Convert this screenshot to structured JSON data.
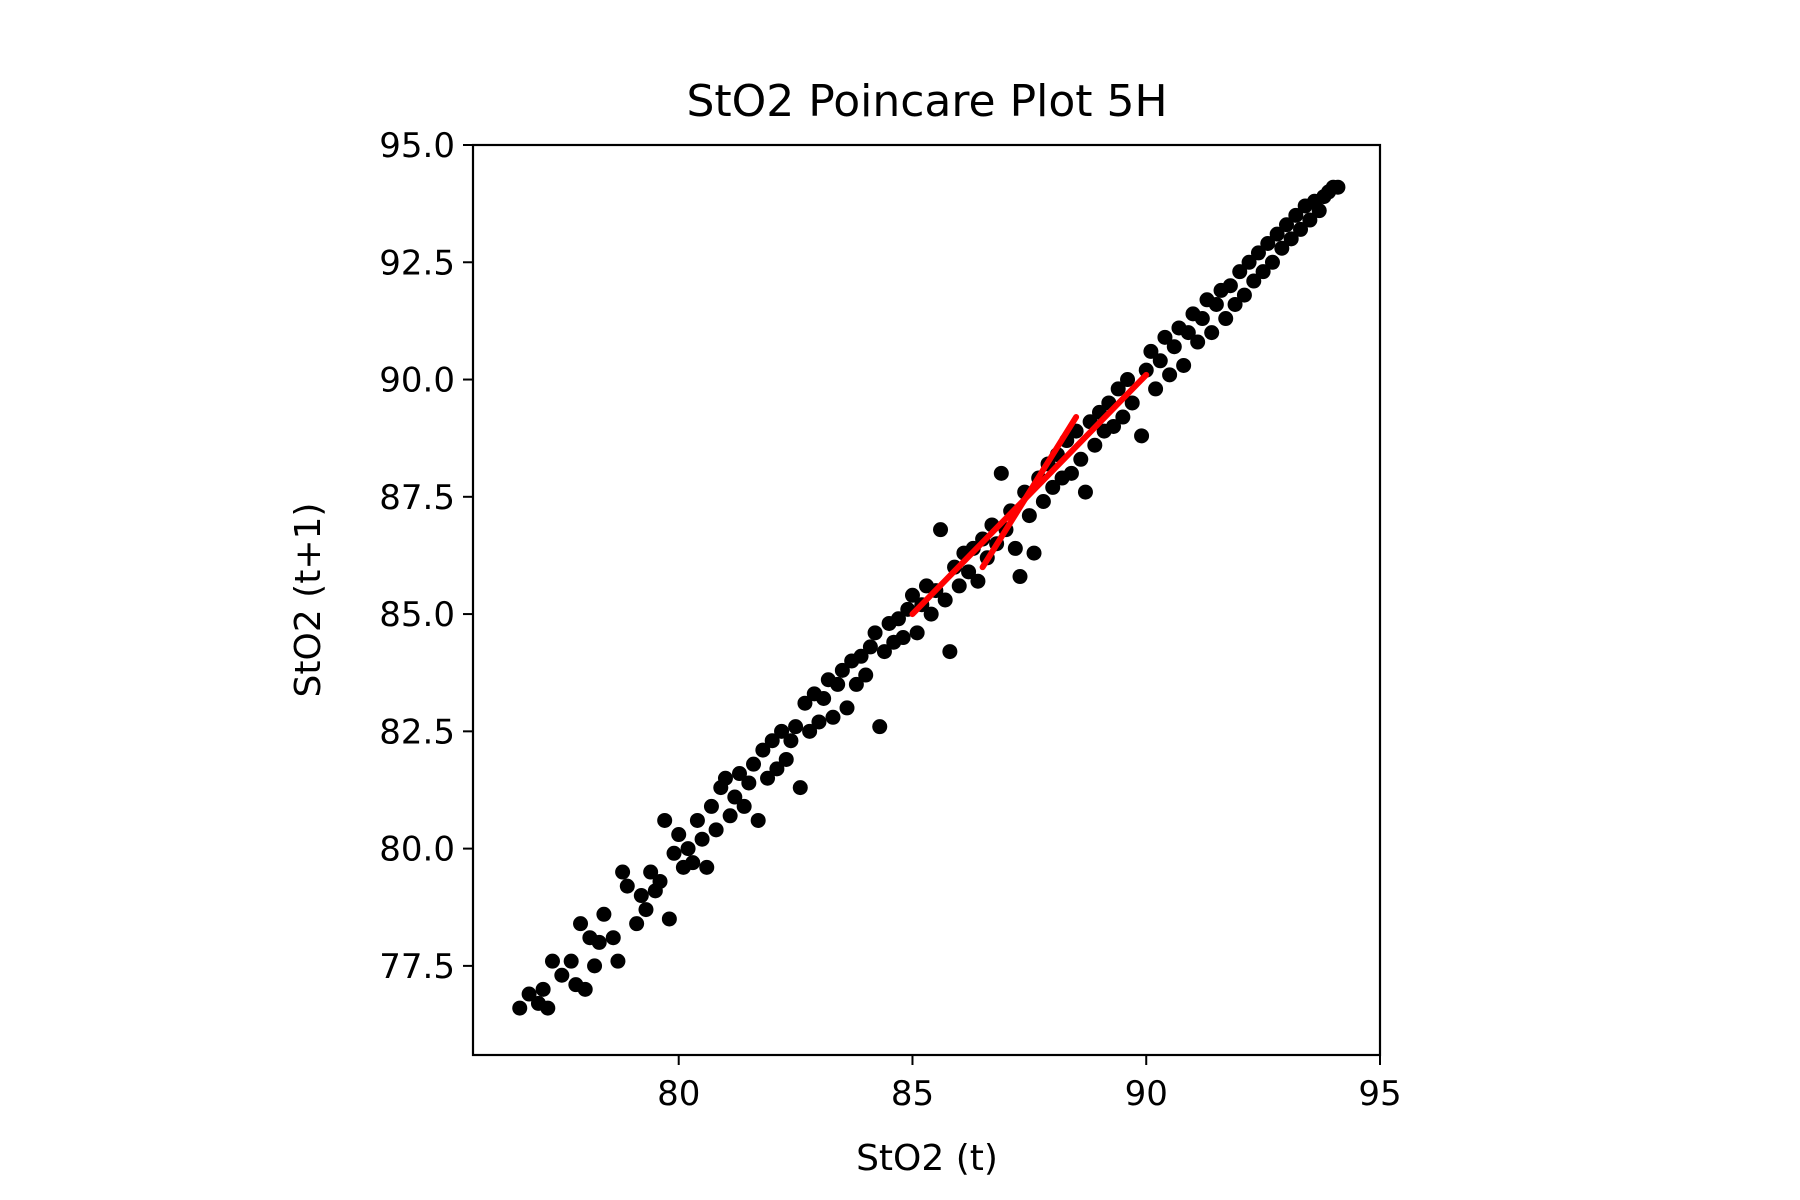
{
  "chart_data": {
    "type": "scatter",
    "title": "StO2 Poincare Plot 5H",
    "xlabel": "StO2 (t)",
    "ylabel": "StO2 (t+1)",
    "xlim": [
      75.6,
      95.0
    ],
    "ylim": [
      75.6,
      95.0
    ],
    "x_ticks": [
      80,
      85,
      90,
      95
    ],
    "x_tick_labels": [
      "80",
      "85",
      "90",
      "95"
    ],
    "y_ticks": [
      77.5,
      80.0,
      82.5,
      85.0,
      87.5,
      90.0,
      92.5,
      95.0
    ],
    "y_tick_labels": [
      "77.5",
      "80.0",
      "82.5",
      "85.0",
      "87.5",
      "90.0",
      "92.5",
      "95.0"
    ],
    "grid": false,
    "marker_color": "#000000",
    "series": [
      {
        "points": [
          [
            76.6,
            76.6
          ],
          [
            76.8,
            76.9
          ],
          [
            77.0,
            76.7
          ],
          [
            77.1,
            77.0
          ],
          [
            77.2,
            76.6
          ],
          [
            77.3,
            77.6
          ],
          [
            77.5,
            77.3
          ],
          [
            77.7,
            77.6
          ],
          [
            77.8,
            77.1
          ],
          [
            77.9,
            78.4
          ],
          [
            78.0,
            77.0
          ],
          [
            78.1,
            78.1
          ],
          [
            78.2,
            77.5
          ],
          [
            78.3,
            78.0
          ],
          [
            78.4,
            78.6
          ],
          [
            78.6,
            78.1
          ],
          [
            78.7,
            77.6
          ],
          [
            78.8,
            79.5
          ],
          [
            78.9,
            79.2
          ],
          [
            79.1,
            78.4
          ],
          [
            79.2,
            79.0
          ],
          [
            79.3,
            78.7
          ],
          [
            79.4,
            79.5
          ],
          [
            79.5,
            79.1
          ],
          [
            79.6,
            79.3
          ],
          [
            79.7,
            80.6
          ],
          [
            79.8,
            78.5
          ],
          [
            79.9,
            79.9
          ],
          [
            80.0,
            80.3
          ],
          [
            80.1,
            79.6
          ],
          [
            80.2,
            80.0
          ],
          [
            80.3,
            79.7
          ],
          [
            80.4,
            80.6
          ],
          [
            80.5,
            80.2
          ],
          [
            80.6,
            79.6
          ],
          [
            80.7,
            80.9
          ],
          [
            80.8,
            80.4
          ],
          [
            80.9,
            81.3
          ],
          [
            81.0,
            81.5
          ],
          [
            81.1,
            80.7
          ],
          [
            81.2,
            81.1
          ],
          [
            81.3,
            81.6
          ],
          [
            81.4,
            80.9
          ],
          [
            81.5,
            81.4
          ],
          [
            81.6,
            81.8
          ],
          [
            81.7,
            80.6
          ],
          [
            81.8,
            82.1
          ],
          [
            81.9,
            81.5
          ],
          [
            82.0,
            82.3
          ],
          [
            82.1,
            81.7
          ],
          [
            82.2,
            82.5
          ],
          [
            82.3,
            81.9
          ],
          [
            82.4,
            82.3
          ],
          [
            82.5,
            82.6
          ],
          [
            82.6,
            81.3
          ],
          [
            82.7,
            83.1
          ],
          [
            82.8,
            82.5
          ],
          [
            82.9,
            83.3
          ],
          [
            83.0,
            82.7
          ],
          [
            83.1,
            83.2
          ],
          [
            83.2,
            83.6
          ],
          [
            83.3,
            82.8
          ],
          [
            83.4,
            83.5
          ],
          [
            83.5,
            83.8
          ],
          [
            83.6,
            83.0
          ],
          [
            83.7,
            84.0
          ],
          [
            83.8,
            83.5
          ],
          [
            83.9,
            84.1
          ],
          [
            84.0,
            83.7
          ],
          [
            84.1,
            84.3
          ],
          [
            84.2,
            84.6
          ],
          [
            84.3,
            82.6
          ],
          [
            84.4,
            84.2
          ],
          [
            84.5,
            84.8
          ],
          [
            84.6,
            84.4
          ],
          [
            84.7,
            84.9
          ],
          [
            84.8,
            84.5
          ],
          [
            84.9,
            85.1
          ],
          [
            85.0,
            85.4
          ],
          [
            85.1,
            84.6
          ],
          [
            85.2,
            85.2
          ],
          [
            85.3,
            85.6
          ],
          [
            85.4,
            85.0
          ],
          [
            85.5,
            85.5
          ],
          [
            85.6,
            86.8
          ],
          [
            85.7,
            85.3
          ],
          [
            85.8,
            84.2
          ],
          [
            85.9,
            86.0
          ],
          [
            86.0,
            85.6
          ],
          [
            86.1,
            86.3
          ],
          [
            86.2,
            85.9
          ],
          [
            86.3,
            86.4
          ],
          [
            86.4,
            85.7
          ],
          [
            86.5,
            86.6
          ],
          [
            86.6,
            86.2
          ],
          [
            86.7,
            86.9
          ],
          [
            86.8,
            86.5
          ],
          [
            86.9,
            88.0
          ],
          [
            87.0,
            86.8
          ],
          [
            87.1,
            87.2
          ],
          [
            87.2,
            86.4
          ],
          [
            87.3,
            85.8
          ],
          [
            87.4,
            87.6
          ],
          [
            87.5,
            87.1
          ],
          [
            87.6,
            86.3
          ],
          [
            87.7,
            87.9
          ],
          [
            87.8,
            87.4
          ],
          [
            87.9,
            88.2
          ],
          [
            88.0,
            87.7
          ],
          [
            88.1,
            88.4
          ],
          [
            88.2,
            87.9
          ],
          [
            88.3,
            88.7
          ],
          [
            88.4,
            88.0
          ],
          [
            88.5,
            88.9
          ],
          [
            88.6,
            88.3
          ],
          [
            88.7,
            87.6
          ],
          [
            88.8,
            89.1
          ],
          [
            88.9,
            88.6
          ],
          [
            89.0,
            89.3
          ],
          [
            89.1,
            88.9
          ],
          [
            89.2,
            89.5
          ],
          [
            89.3,
            89.0
          ],
          [
            89.4,
            89.8
          ],
          [
            89.5,
            89.2
          ],
          [
            89.6,
            90.0
          ],
          [
            89.7,
            89.5
          ],
          [
            89.9,
            88.8
          ],
          [
            90.0,
            90.2
          ],
          [
            90.1,
            90.6
          ],
          [
            90.2,
            89.8
          ],
          [
            90.3,
            90.4
          ],
          [
            90.4,
            90.9
          ],
          [
            90.5,
            90.1
          ],
          [
            90.6,
            90.7
          ],
          [
            90.7,
            91.1
          ],
          [
            90.8,
            90.3
          ],
          [
            90.9,
            91.0
          ],
          [
            91.0,
            91.4
          ],
          [
            91.1,
            90.8
          ],
          [
            91.2,
            91.3
          ],
          [
            91.3,
            91.7
          ],
          [
            91.4,
            91.0
          ],
          [
            91.5,
            91.6
          ],
          [
            91.6,
            91.9
          ],
          [
            91.7,
            91.3
          ],
          [
            91.8,
            92.0
          ],
          [
            91.9,
            91.6
          ],
          [
            92.0,
            92.3
          ],
          [
            92.1,
            91.8
          ],
          [
            92.2,
            92.5
          ],
          [
            92.3,
            92.1
          ],
          [
            92.4,
            92.7
          ],
          [
            92.5,
            92.3
          ],
          [
            92.6,
            92.9
          ],
          [
            92.7,
            92.5
          ],
          [
            92.8,
            93.1
          ],
          [
            92.9,
            92.8
          ],
          [
            93.0,
            93.3
          ],
          [
            93.1,
            93.0
          ],
          [
            93.2,
            93.5
          ],
          [
            93.3,
            93.2
          ],
          [
            93.4,
            93.7
          ],
          [
            93.5,
            93.4
          ],
          [
            93.6,
            93.8
          ],
          [
            93.7,
            93.6
          ],
          [
            93.8,
            93.9
          ],
          [
            93.9,
            94.0
          ],
          [
            94.0,
            94.1
          ],
          [
            94.1,
            94.1
          ]
        ]
      }
    ],
    "overlay": {
      "color": "#ff0000",
      "segments": [
        [
          [
            85.0,
            85.0
          ],
          [
            90.0,
            90.1
          ]
        ],
        [
          [
            86.5,
            86.0
          ],
          [
            88.5,
            89.2
          ]
        ]
      ]
    }
  }
}
